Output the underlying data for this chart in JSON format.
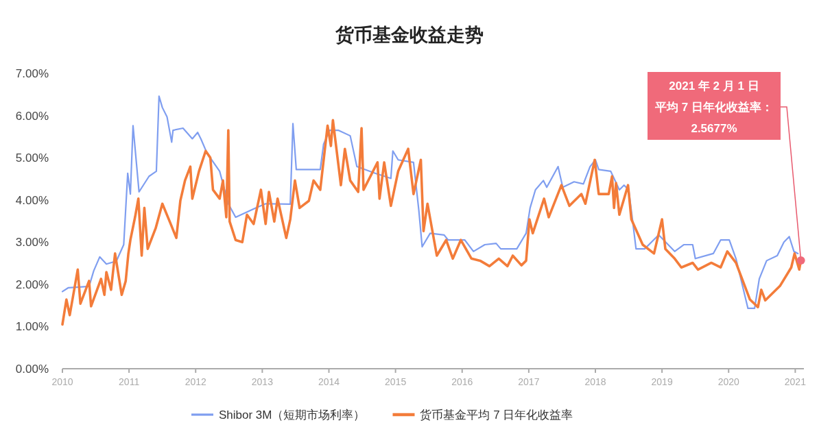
{
  "chart_data": {
    "type": "line",
    "title": "货币基金收益走势",
    "xlim": [
      2010,
      2021.13
    ],
    "xticks": [
      2010,
      2011,
      2012,
      2013,
      2014,
      2015,
      2016,
      2017,
      2018,
      2019,
      2020,
      2021
    ],
    "ylim": [
      0,
      7
    ],
    "yticks": [
      {
        "value": 0,
        "label": "0.00%"
      },
      {
        "value": 1,
        "label": "1.00%"
      },
      {
        "value": 2,
        "label": "2.00%"
      },
      {
        "value": 3,
        "label": "3.00%"
      },
      {
        "value": 4,
        "label": "4.00%"
      },
      {
        "value": 5,
        "label": "5.00%"
      },
      {
        "value": 6,
        "label": "6.00%"
      },
      {
        "value": 7,
        "label": "7.00%"
      }
    ],
    "grid": false,
    "legend": "bottom",
    "marker": "none",
    "line_style": "solid",
    "annotations": [
      "2021 年 2 月 1 日",
      {
        "text": "平均 7 日年化收益率：",
        "x": 2021.085,
        "y": 2.5677
      },
      "2.5677%"
    ],
    "series": [
      {
        "name": "Shibor 3M（短期市场利率）",
        "color": "#7f9ef0",
        "x": [
          2010.0,
          2010.09,
          2010.4,
          2010.47,
          2010.56,
          2010.66,
          2010.81,
          2010.92,
          2010.98,
          2011.02,
          2011.06,
          2011.15,
          2011.3,
          2011.41,
          2011.45,
          2011.5,
          2011.57,
          2011.64,
          2011.66,
          2011.81,
          2011.95,
          2012.03,
          2012.08,
          2012.17,
          2012.36,
          2012.49,
          2012.6,
          2012.9,
          2013.05,
          2013.42,
          2013.46,
          2013.51,
          2013.87,
          2013.92,
          2014.01,
          2014.14,
          2014.32,
          2014.42,
          2014.7,
          2014.93,
          2014.96,
          2015.04,
          2015.27,
          2015.35,
          2015.4,
          2015.52,
          2015.73,
          2015.79,
          2016.04,
          2016.17,
          2016.34,
          2016.51,
          2016.58,
          2016.82,
          2016.96,
          2017.02,
          2017.1,
          2017.22,
          2017.27,
          2017.44,
          2017.51,
          2017.68,
          2017.82,
          2017.92,
          2018.0,
          2018.05,
          2018.23,
          2018.36,
          2018.43,
          2018.5,
          2018.56,
          2018.61,
          2018.74,
          2018.95,
          2019.19,
          2019.33,
          2019.46,
          2019.5,
          2019.77,
          2019.88,
          2020.01,
          2020.11,
          2020.29,
          2020.39,
          2020.46,
          2020.57,
          2020.73,
          2020.83,
          2020.91,
          2020.98,
          2021.04
        ],
        "values": [
          1.83,
          1.92,
          1.95,
          2.32,
          2.65,
          2.48,
          2.55,
          2.94,
          4.63,
          4.14,
          5.76,
          4.19,
          4.56,
          4.68,
          6.46,
          6.19,
          5.97,
          5.37,
          5.65,
          5.7,
          5.45,
          5.6,
          5.44,
          5.11,
          4.68,
          3.91,
          3.59,
          3.81,
          3.91,
          3.9,
          5.81,
          4.72,
          4.72,
          5.32,
          5.65,
          5.65,
          5.52,
          4.79,
          4.63,
          4.51,
          5.16,
          4.95,
          4.89,
          3.75,
          2.89,
          3.21,
          3.17,
          3.05,
          3.05,
          2.78,
          2.94,
          2.97,
          2.84,
          2.84,
          3.21,
          3.81,
          4.24,
          4.46,
          4.3,
          4.79,
          4.3,
          4.43,
          4.38,
          4.79,
          4.95,
          4.72,
          4.68,
          4.24,
          4.35,
          4.24,
          3.49,
          2.84,
          2.84,
          3.17,
          2.78,
          2.94,
          2.94,
          2.61,
          2.73,
          3.05,
          3.05,
          2.61,
          1.43,
          1.43,
          2.13,
          2.56,
          2.68,
          3.0,
          3.13,
          2.78,
          2.73
        ]
      },
      {
        "name": "货币基金平均 7 日年化收益率",
        "color": "#f37c3a",
        "x": [
          2010.0,
          2010.06,
          2010.11,
          2010.23,
          2010.27,
          2010.4,
          2010.43,
          2010.58,
          2010.63,
          2010.66,
          2010.73,
          2010.79,
          2010.89,
          2010.95,
          2010.99,
          2011.02,
          2011.09,
          2011.14,
          2011.19,
          2011.23,
          2011.28,
          2011.4,
          2011.5,
          2011.61,
          2011.71,
          2011.77,
          2011.84,
          2011.92,
          2011.95,
          2012.05,
          2012.15,
          2012.22,
          2012.26,
          2012.36,
          2012.41,
          2012.46,
          2012.49,
          2012.51,
          2012.6,
          2012.7,
          2012.77,
          2012.87,
          2012.98,
          2013.05,
          2013.1,
          2013.18,
          2013.23,
          2013.36,
          2013.42,
          2013.49,
          2013.56,
          2013.7,
          2013.77,
          2013.87,
          2013.98,
          2014.03,
          2014.06,
          2014.18,
          2014.24,
          2014.32,
          2014.44,
          2014.49,
          2014.52,
          2014.73,
          2014.76,
          2014.83,
          2014.93,
          2015.04,
          2015.19,
          2015.27,
          2015.38,
          2015.42,
          2015.48,
          2015.62,
          2015.76,
          2015.86,
          2015.98,
          2016.14,
          2016.27,
          2016.41,
          2016.55,
          2016.68,
          2016.76,
          2016.89,
          2016.96,
          2017.01,
          2017.06,
          2017.23,
          2017.3,
          2017.49,
          2017.61,
          2017.79,
          2017.85,
          2017.99,
          2018.05,
          2018.2,
          2018.25,
          2018.28,
          2018.31,
          2018.36,
          2018.49,
          2018.54,
          2018.71,
          2018.88,
          2019.0,
          2019.05,
          2019.19,
          2019.29,
          2019.46,
          2019.54,
          2019.74,
          2019.88,
          2019.98,
          2020.11,
          2020.32,
          2020.44,
          2020.49,
          2020.55,
          2020.77,
          2020.94,
          2020.99,
          2021.06,
          2021.085
        ],
        "values": [
          1.05,
          1.64,
          1.27,
          2.35,
          1.54,
          2.08,
          1.48,
          2.13,
          1.75,
          2.29,
          1.87,
          2.73,
          1.75,
          2.08,
          2.73,
          3.05,
          3.59,
          4.03,
          2.68,
          3.81,
          2.84,
          3.33,
          3.91,
          3.49,
          3.1,
          3.98,
          4.46,
          4.79,
          4.03,
          4.68,
          5.16,
          5.0,
          4.24,
          4.03,
          4.46,
          3.59,
          5.65,
          3.49,
          3.05,
          3.0,
          3.65,
          3.43,
          4.24,
          3.43,
          4.19,
          3.49,
          4.03,
          3.1,
          3.54,
          4.46,
          3.81,
          3.98,
          4.46,
          4.24,
          5.76,
          5.28,
          5.89,
          4.35,
          5.21,
          4.46,
          4.19,
          5.7,
          4.24,
          4.89,
          4.03,
          4.89,
          3.86,
          4.68,
          5.21,
          4.14,
          4.95,
          3.26,
          3.91,
          2.68,
          3.05,
          2.61,
          3.05,
          2.61,
          2.56,
          2.43,
          2.61,
          2.43,
          2.68,
          2.45,
          2.56,
          3.54,
          3.21,
          4.03,
          3.59,
          4.35,
          3.86,
          4.14,
          3.91,
          4.95,
          4.14,
          4.14,
          4.56,
          3.81,
          4.4,
          3.65,
          4.35,
          3.54,
          2.94,
          2.73,
          3.54,
          2.84,
          2.61,
          2.4,
          2.51,
          2.35,
          2.51,
          2.4,
          2.78,
          2.51,
          1.64,
          1.46,
          1.87,
          1.62,
          1.96,
          2.4,
          2.73,
          2.35,
          2.5677
        ]
      }
    ]
  }
}
